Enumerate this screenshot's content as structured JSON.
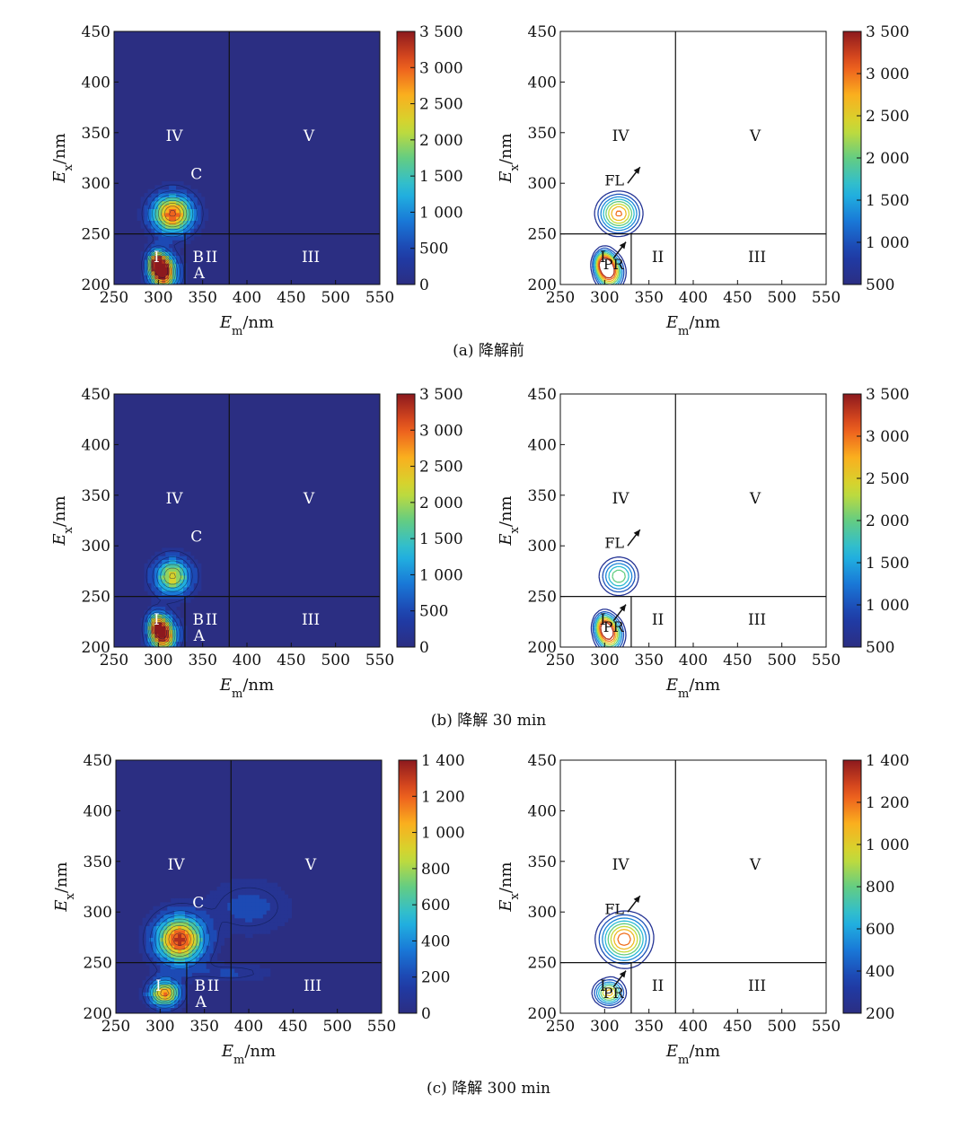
{
  "chart_data": [
    {
      "type": "heatmap",
      "style": "filled",
      "figure_caption": "(a) 降解前",
      "xlabel": "Em/nm",
      "ylabel": "Ex/nm",
      "xlim": [
        250,
        550
      ],
      "ylim": [
        200,
        450
      ],
      "x_ticks": [
        "250",
        "300",
        "350",
        "400",
        "450",
        "500",
        "550"
      ],
      "y_ticks": [
        "200",
        "250",
        "300",
        "350",
        "400",
        "450"
      ],
      "colorbar": {
        "min": 0,
        "max": 3500,
        "ticks": [
          "0",
          "500",
          "1 000",
          "1 500",
          "2 000",
          "2 500",
          "3 000",
          "3 500"
        ]
      },
      "region_labels": [
        "I",
        "II",
        "III",
        "IV",
        "V"
      ],
      "peak_labels": [
        "A",
        "B",
        "C"
      ],
      "peaks": [
        {
          "em": 316,
          "ex": 270,
          "intensity": 3100,
          "sx": 22,
          "sy": 18
        },
        {
          "em": 306,
          "ex": 212,
          "intensity": 3500,
          "sx": 14,
          "sy": 16
        },
        {
          "em": 298,
          "ex": 222,
          "intensity": 2500,
          "sx": 10,
          "sy": 12
        }
      ]
    },
    {
      "type": "heatmap",
      "style": "contour",
      "xlabel": "Em/nm",
      "ylabel": "Ex/nm",
      "xlim": [
        250,
        550
      ],
      "ylim": [
        200,
        450
      ],
      "x_ticks": [
        "250",
        "300",
        "350",
        "400",
        "450",
        "500",
        "550"
      ],
      "y_ticks": [
        "200",
        "250",
        "300",
        "350",
        "400",
        "450"
      ],
      "colorbar": {
        "min": 500,
        "max": 3500,
        "ticks": [
          "500",
          "1 000",
          "1 500",
          "2 000",
          "2 500",
          "3 000",
          "3 500"
        ]
      },
      "region_labels": [
        "I",
        "II",
        "III",
        "IV",
        "V"
      ],
      "peak_labels": [
        "FL",
        "PR"
      ],
      "peaks": [
        {
          "em": 316,
          "ex": 270,
          "intensity": 3100,
          "sx": 22,
          "sy": 18
        },
        {
          "em": 306,
          "ex": 212,
          "intensity": 3500,
          "sx": 14,
          "sy": 16
        },
        {
          "em": 298,
          "ex": 222,
          "intensity": 2500,
          "sx": 10,
          "sy": 12
        }
      ]
    },
    {
      "type": "heatmap",
      "style": "filled",
      "figure_caption": "(b) 降解 30 min",
      "xlabel": "Em/nm",
      "ylabel": "Ex/nm",
      "xlim": [
        250,
        550
      ],
      "ylim": [
        200,
        450
      ],
      "x_ticks": [
        "250",
        "300",
        "350",
        "400",
        "450",
        "500",
        "550"
      ],
      "y_ticks": [
        "200",
        "250",
        "300",
        "350",
        "400",
        "450"
      ],
      "colorbar": {
        "min": 0,
        "max": 3500,
        "ticks": [
          "0",
          "500",
          "1 000",
          "1 500",
          "2 000",
          "2 500",
          "3 000",
          "3 500"
        ]
      },
      "region_labels": [
        "I",
        "II",
        "III",
        "IV",
        "V"
      ],
      "peak_labels": [
        "A",
        "B",
        "C"
      ],
      "peaks": [
        {
          "em": 316,
          "ex": 270,
          "intensity": 2300,
          "sx": 20,
          "sy": 17
        },
        {
          "em": 306,
          "ex": 212,
          "intensity": 3300,
          "sx": 14,
          "sy": 16
        },
        {
          "em": 298,
          "ex": 222,
          "intensity": 2100,
          "sx": 10,
          "sy": 12
        }
      ]
    },
    {
      "type": "heatmap",
      "style": "contour",
      "xlabel": "Em/nm",
      "ylabel": "Ex/nm",
      "xlim": [
        250,
        550
      ],
      "ylim": [
        200,
        450
      ],
      "x_ticks": [
        "250",
        "300",
        "350",
        "400",
        "450",
        "500",
        "550"
      ],
      "y_ticks": [
        "200",
        "250",
        "300",
        "350",
        "400",
        "450"
      ],
      "colorbar": {
        "min": 500,
        "max": 3500,
        "ticks": [
          "500",
          "1 000",
          "1 500",
          "2 000",
          "2 500",
          "3 000",
          "3 500"
        ]
      },
      "region_labels": [
        "I",
        "II",
        "III",
        "IV",
        "V"
      ],
      "peak_labels": [
        "FL",
        "PR"
      ],
      "peaks": [
        {
          "em": 316,
          "ex": 270,
          "intensity": 2300,
          "sx": 20,
          "sy": 17
        },
        {
          "em": 306,
          "ex": 212,
          "intensity": 3300,
          "sx": 14,
          "sy": 16
        },
        {
          "em": 298,
          "ex": 222,
          "intensity": 2100,
          "sx": 10,
          "sy": 12
        }
      ]
    },
    {
      "type": "heatmap",
      "style": "filled",
      "figure_caption": "(c) 降解 300 min",
      "xlabel": "Em/nm",
      "ylabel": "Ex/nm",
      "xlim": [
        250,
        550
      ],
      "ylim": [
        200,
        450
      ],
      "x_ticks": [
        "250",
        "300",
        "350",
        "400",
        "450",
        "500",
        "550"
      ],
      "y_ticks": [
        "200",
        "250",
        "300",
        "350",
        "400",
        "450"
      ],
      "colorbar": {
        "min": 0,
        "max": 1400,
        "ticks": [
          "0",
          "200",
          "400",
          "600",
          "800",
          "1 000",
          "1 200",
          "1 400"
        ]
      },
      "region_labels": [
        "I",
        "II",
        "III",
        "IV",
        "V"
      ],
      "peak_labels": [
        "A",
        "B",
        "C"
      ],
      "peaks": [
        {
          "em": 322,
          "ex": 273,
          "intensity": 1300,
          "sx": 26,
          "sy": 22
        },
        {
          "em": 305,
          "ex": 220,
          "intensity": 1150,
          "sx": 16,
          "sy": 12
        },
        {
          "em": 400,
          "ex": 305,
          "intensity": 180,
          "sx": 45,
          "sy": 26
        },
        {
          "em": 380,
          "ex": 240,
          "intensity": 150,
          "sx": 45,
          "sy": 9
        }
      ]
    },
    {
      "type": "heatmap",
      "style": "contour",
      "xlabel": "Em/nm",
      "ylabel": "Ex/nm",
      "xlim": [
        250,
        550
      ],
      "ylim": [
        200,
        450
      ],
      "x_ticks": [
        "250",
        "300",
        "350",
        "400",
        "450",
        "500",
        "550"
      ],
      "y_ticks": [
        "200",
        "250",
        "300",
        "350",
        "400",
        "450"
      ],
      "colorbar": {
        "min": 200,
        "max": 1400,
        "ticks": [
          "200",
          "400",
          "600",
          "800",
          "1 000",
          "1 200",
          "1 400"
        ]
      },
      "region_labels": [
        "I",
        "II",
        "III",
        "IV",
        "V"
      ],
      "peak_labels": [
        "FL",
        "PR"
      ],
      "peaks": [
        {
          "em": 322,
          "ex": 273,
          "intensity": 1300,
          "sx": 26,
          "sy": 22
        },
        {
          "em": 305,
          "ex": 220,
          "intensity": 1150,
          "sx": 16,
          "sy": 12
        },
        {
          "em": 400,
          "ex": 305,
          "intensity": 180,
          "sx": 45,
          "sy": 26
        },
        {
          "em": 380,
          "ex": 240,
          "intensity": 150,
          "sx": 45,
          "sy": 9
        }
      ]
    }
  ]
}
